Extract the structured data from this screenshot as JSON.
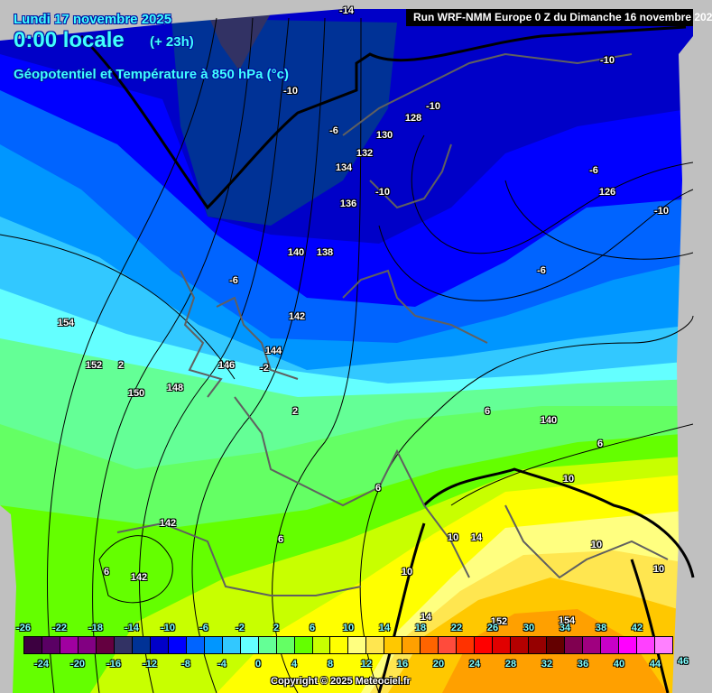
{
  "header": {
    "date": "Lundi 17 novembre 2025",
    "time": "0:00 locale",
    "lead": "(+ 23h)",
    "parameter": "Géopotentiel et Température à 850 hPa (°c)",
    "run": "Run WRF-NMM Europe 0 Z du Dimanche 16 novembre 202"
  },
  "map": {
    "contour_labels": [
      "-14",
      "-10",
      "-10",
      "-10",
      "128",
      "-6",
      "130",
      "132",
      "134",
      "-10",
      "136",
      "140",
      "138",
      "-6",
      "142",
      "144",
      "-2",
      "146",
      "148",
      "150",
      "152",
      "2",
      "154",
      "2",
      "6",
      "140",
      "6",
      "10",
      "6",
      "142",
      "6",
      "142",
      "6",
      "10",
      "14",
      "10",
      "10",
      "10",
      "14",
      "152",
      "154",
      "-6",
      "126",
      "-6",
      "-10"
    ],
    "colors": {
      "ocean_cold": "#0000c8",
      "land_mask": "#c0c0c0",
      "coast": "#606060",
      "contour": "#000000"
    }
  },
  "legend": {
    "top_ticks": [
      "-26",
      "-22",
      "-18",
      "-14",
      "-10",
      "-6",
      "-2",
      "2",
      "6",
      "10",
      "14",
      "18",
      "22",
      "26",
      "30",
      "34",
      "38",
      "42"
    ],
    "bottom_ticks": [
      "-24",
      "-20",
      "-16",
      "-12",
      "-8",
      "-4",
      "0",
      "4",
      "8",
      "12",
      "16",
      "20",
      "24",
      "28",
      "32",
      "36",
      "40",
      "44",
      "46"
    ],
    "colors": [
      "#3c0040",
      "#5a0064",
      "#a000a0",
      "#820082",
      "#640040",
      "#323264",
      "#003296",
      "#0000c8",
      "#0000ff",
      "#0064ff",
      "#0096ff",
      "#32c8ff",
      "#64ffff",
      "#64ff96",
      "#64ff64",
      "#64ff00",
      "#c8ff00",
      "#ffff00",
      "#ffff80",
      "#ffe650",
      "#ffc800",
      "#ffa000",
      "#ff6400",
      "#ff4b3c",
      "#ff3200",
      "#ff0000",
      "#e10000",
      "#b40000",
      "#960000",
      "#640000",
      "#800050",
      "#a00080",
      "#c800c8",
      "#ff00ff",
      "#ff40ff",
      "#ff80ff"
    ]
  },
  "footer": {
    "copyright": "Copyright © 2025 Meteociel.fr"
  }
}
